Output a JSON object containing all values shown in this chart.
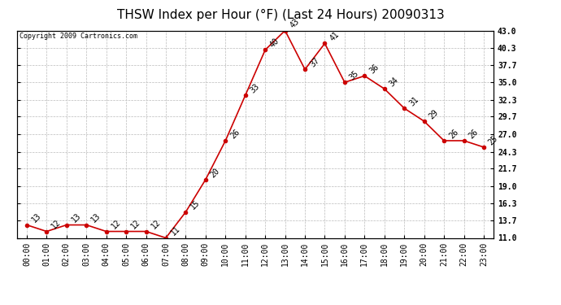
{
  "title": "THSW Index per Hour (°F) (Last 24 Hours) 20090313",
  "copyright": "Copyright 2009 Cartronics.com",
  "hours": [
    "00:00",
    "01:00",
    "02:00",
    "03:00",
    "04:00",
    "05:00",
    "06:00",
    "07:00",
    "08:00",
    "09:00",
    "10:00",
    "11:00",
    "12:00",
    "13:00",
    "14:00",
    "15:00",
    "16:00",
    "17:00",
    "18:00",
    "19:00",
    "20:00",
    "21:00",
    "22:00",
    "23:00"
  ],
  "values": [
    13,
    12,
    13,
    13,
    12,
    12,
    12,
    11,
    15,
    20,
    26,
    33,
    40,
    43,
    37,
    41,
    35,
    36,
    34,
    31,
    29,
    26,
    26,
    25
  ],
  "line_color": "#cc0000",
  "marker_color": "#cc0000",
  "bg_color": "#ffffff",
  "grid_color": "#bbbbbb",
  "ylim_min": 11.0,
  "ylim_max": 43.0,
  "yticks": [
    11.0,
    13.7,
    16.3,
    19.0,
    21.7,
    24.3,
    27.0,
    29.7,
    32.3,
    35.0,
    37.7,
    40.3,
    43.0
  ],
  "title_fontsize": 11,
  "label_fontsize": 7,
  "annotation_fontsize": 7,
  "copyright_fontsize": 6
}
